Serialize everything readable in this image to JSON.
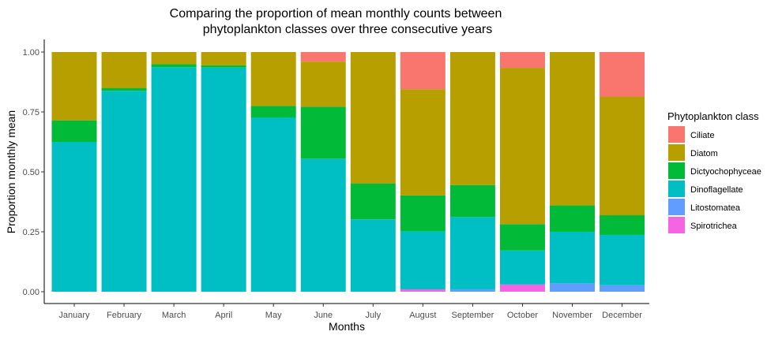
{
  "chart_data": {
    "type": "bar",
    "stacked": true,
    "title_line1": "Comparing the proportion of mean monthly counts between",
    "title_line2": "phytoplankton classes over three consecutive years",
    "xlabel": "Months",
    "ylabel": "Proportion monthly mean",
    "ylim": [
      0,
      1
    ],
    "yticks": [
      "0.00",
      "0.25",
      "0.50",
      "0.75",
      "1.00"
    ],
    "grid": false,
    "legend_title": "Phytoplankton class",
    "legend_position": "right",
    "categories": [
      "January",
      "February",
      "March",
      "April",
      "May",
      "June",
      "July",
      "August",
      "September",
      "October",
      "November",
      "December"
    ],
    "series": [
      {
        "name": "Spirotrichea",
        "color": "#F564E3",
        "values": [
          0,
          0,
          0,
          0,
          0,
          0,
          0,
          0.01,
          0,
          0.03,
          0,
          0
        ]
      },
      {
        "name": "Litostomatea",
        "color": "#619CFF",
        "values": [
          0,
          0,
          0,
          0,
          0,
          0,
          0,
          0,
          0.01,
          0,
          0.035,
          0.027
        ]
      },
      {
        "name": "Dinoflagellate",
        "color": "#00BFC4",
        "values": [
          0.625,
          0.838,
          0.937,
          0.935,
          0.727,
          0.555,
          0.302,
          0.242,
          0.302,
          0.142,
          0.215,
          0.21
        ]
      },
      {
        "name": "Dictyochophyceae",
        "color": "#00BA38",
        "values": [
          0.09,
          0.012,
          0.013,
          0.01,
          0.048,
          0.217,
          0.15,
          0.15,
          0.133,
          0.11,
          0.11,
          0.082
        ]
      },
      {
        "name": "Diatom",
        "color": "#B79F00",
        "values": [
          0.285,
          0.15,
          0.05,
          0.055,
          0.225,
          0.188,
          0.548,
          0.443,
          0.555,
          0.652,
          0.64,
          0.495
        ]
      },
      {
        "name": "Ciliate",
        "color": "#F8766D",
        "values": [
          0,
          0,
          0,
          0,
          0,
          0.04,
          0,
          0.155,
          0,
          0.066,
          0,
          0.186
        ]
      }
    ],
    "legend_order": [
      "Ciliate",
      "Diatom",
      "Dictyochophyceae",
      "Dinoflagellate",
      "Litostomatea",
      "Spirotrichea"
    ]
  }
}
